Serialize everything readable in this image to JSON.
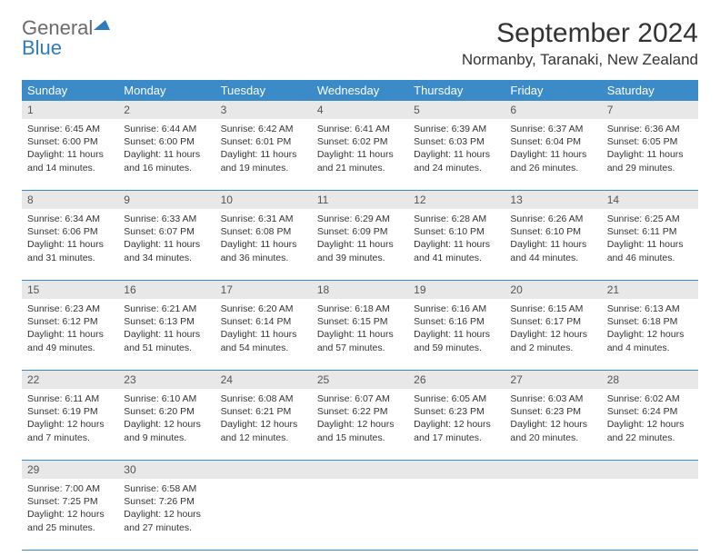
{
  "logo": {
    "general": "General",
    "blue": "Blue"
  },
  "title": "September 2024",
  "location": "Normanby, Taranaki, New Zealand",
  "colors": {
    "header_bg": "#3b8bc9",
    "header_text": "#ffffff",
    "daynum_bg": "#e8e8e8",
    "week_border": "#3b8bc9",
    "text": "#333333",
    "logo_gray": "#6b6b6b",
    "logo_blue": "#2f7bbf"
  },
  "day_names": [
    "Sunday",
    "Monday",
    "Tuesday",
    "Wednesday",
    "Thursday",
    "Friday",
    "Saturday"
  ],
  "weeks": [
    [
      {
        "n": "1",
        "sunrise": "Sunrise: 6:45 AM",
        "sunset": "Sunset: 6:00 PM",
        "d1": "Daylight: 11 hours",
        "d2": "and 14 minutes."
      },
      {
        "n": "2",
        "sunrise": "Sunrise: 6:44 AM",
        "sunset": "Sunset: 6:00 PM",
        "d1": "Daylight: 11 hours",
        "d2": "and 16 minutes."
      },
      {
        "n": "3",
        "sunrise": "Sunrise: 6:42 AM",
        "sunset": "Sunset: 6:01 PM",
        "d1": "Daylight: 11 hours",
        "d2": "and 19 minutes."
      },
      {
        "n": "4",
        "sunrise": "Sunrise: 6:41 AM",
        "sunset": "Sunset: 6:02 PM",
        "d1": "Daylight: 11 hours",
        "d2": "and 21 minutes."
      },
      {
        "n": "5",
        "sunrise": "Sunrise: 6:39 AM",
        "sunset": "Sunset: 6:03 PM",
        "d1": "Daylight: 11 hours",
        "d2": "and 24 minutes."
      },
      {
        "n": "6",
        "sunrise": "Sunrise: 6:37 AM",
        "sunset": "Sunset: 6:04 PM",
        "d1": "Daylight: 11 hours",
        "d2": "and 26 minutes."
      },
      {
        "n": "7",
        "sunrise": "Sunrise: 6:36 AM",
        "sunset": "Sunset: 6:05 PM",
        "d1": "Daylight: 11 hours",
        "d2": "and 29 minutes."
      }
    ],
    [
      {
        "n": "8",
        "sunrise": "Sunrise: 6:34 AM",
        "sunset": "Sunset: 6:06 PM",
        "d1": "Daylight: 11 hours",
        "d2": "and 31 minutes."
      },
      {
        "n": "9",
        "sunrise": "Sunrise: 6:33 AM",
        "sunset": "Sunset: 6:07 PM",
        "d1": "Daylight: 11 hours",
        "d2": "and 34 minutes."
      },
      {
        "n": "10",
        "sunrise": "Sunrise: 6:31 AM",
        "sunset": "Sunset: 6:08 PM",
        "d1": "Daylight: 11 hours",
        "d2": "and 36 minutes."
      },
      {
        "n": "11",
        "sunrise": "Sunrise: 6:29 AM",
        "sunset": "Sunset: 6:09 PM",
        "d1": "Daylight: 11 hours",
        "d2": "and 39 minutes."
      },
      {
        "n": "12",
        "sunrise": "Sunrise: 6:28 AM",
        "sunset": "Sunset: 6:10 PM",
        "d1": "Daylight: 11 hours",
        "d2": "and 41 minutes."
      },
      {
        "n": "13",
        "sunrise": "Sunrise: 6:26 AM",
        "sunset": "Sunset: 6:10 PM",
        "d1": "Daylight: 11 hours",
        "d2": "and 44 minutes."
      },
      {
        "n": "14",
        "sunrise": "Sunrise: 6:25 AM",
        "sunset": "Sunset: 6:11 PM",
        "d1": "Daylight: 11 hours",
        "d2": "and 46 minutes."
      }
    ],
    [
      {
        "n": "15",
        "sunrise": "Sunrise: 6:23 AM",
        "sunset": "Sunset: 6:12 PM",
        "d1": "Daylight: 11 hours",
        "d2": "and 49 minutes."
      },
      {
        "n": "16",
        "sunrise": "Sunrise: 6:21 AM",
        "sunset": "Sunset: 6:13 PM",
        "d1": "Daylight: 11 hours",
        "d2": "and 51 minutes."
      },
      {
        "n": "17",
        "sunrise": "Sunrise: 6:20 AM",
        "sunset": "Sunset: 6:14 PM",
        "d1": "Daylight: 11 hours",
        "d2": "and 54 minutes."
      },
      {
        "n": "18",
        "sunrise": "Sunrise: 6:18 AM",
        "sunset": "Sunset: 6:15 PM",
        "d1": "Daylight: 11 hours",
        "d2": "and 57 minutes."
      },
      {
        "n": "19",
        "sunrise": "Sunrise: 6:16 AM",
        "sunset": "Sunset: 6:16 PM",
        "d1": "Daylight: 11 hours",
        "d2": "and 59 minutes."
      },
      {
        "n": "20",
        "sunrise": "Sunrise: 6:15 AM",
        "sunset": "Sunset: 6:17 PM",
        "d1": "Daylight: 12 hours",
        "d2": "and 2 minutes."
      },
      {
        "n": "21",
        "sunrise": "Sunrise: 6:13 AM",
        "sunset": "Sunset: 6:18 PM",
        "d1": "Daylight: 12 hours",
        "d2": "and 4 minutes."
      }
    ],
    [
      {
        "n": "22",
        "sunrise": "Sunrise: 6:11 AM",
        "sunset": "Sunset: 6:19 PM",
        "d1": "Daylight: 12 hours",
        "d2": "and 7 minutes."
      },
      {
        "n": "23",
        "sunrise": "Sunrise: 6:10 AM",
        "sunset": "Sunset: 6:20 PM",
        "d1": "Daylight: 12 hours",
        "d2": "and 9 minutes."
      },
      {
        "n": "24",
        "sunrise": "Sunrise: 6:08 AM",
        "sunset": "Sunset: 6:21 PM",
        "d1": "Daylight: 12 hours",
        "d2": "and 12 minutes."
      },
      {
        "n": "25",
        "sunrise": "Sunrise: 6:07 AM",
        "sunset": "Sunset: 6:22 PM",
        "d1": "Daylight: 12 hours",
        "d2": "and 15 minutes."
      },
      {
        "n": "26",
        "sunrise": "Sunrise: 6:05 AM",
        "sunset": "Sunset: 6:23 PM",
        "d1": "Daylight: 12 hours",
        "d2": "and 17 minutes."
      },
      {
        "n": "27",
        "sunrise": "Sunrise: 6:03 AM",
        "sunset": "Sunset: 6:23 PM",
        "d1": "Daylight: 12 hours",
        "d2": "and 20 minutes."
      },
      {
        "n": "28",
        "sunrise": "Sunrise: 6:02 AM",
        "sunset": "Sunset: 6:24 PM",
        "d1": "Daylight: 12 hours",
        "d2": "and 22 minutes."
      }
    ],
    [
      {
        "n": "29",
        "sunrise": "Sunrise: 7:00 AM",
        "sunset": "Sunset: 7:25 PM",
        "d1": "Daylight: 12 hours",
        "d2": "and 25 minutes."
      },
      {
        "n": "30",
        "sunrise": "Sunrise: 6:58 AM",
        "sunset": "Sunset: 7:26 PM",
        "d1": "Daylight: 12 hours",
        "d2": "and 27 minutes."
      },
      null,
      null,
      null,
      null,
      null
    ]
  ]
}
